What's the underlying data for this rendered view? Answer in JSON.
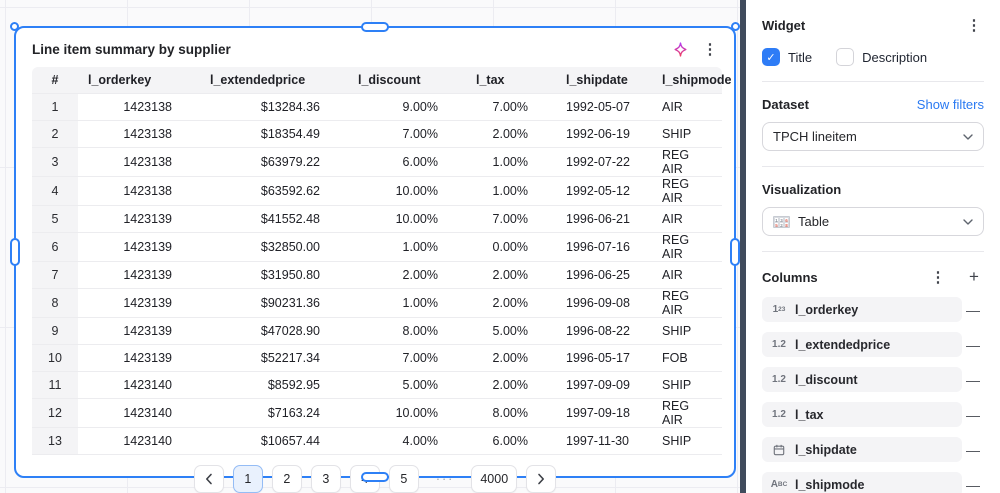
{
  "colors": {
    "accent_blue": "#2e7cf6",
    "selection_blue": "#2e80f6",
    "link_blue": "#2979f2",
    "divider_dark": "#404b5c",
    "row_gray": "#f4f4f6",
    "sparkle_gradient_top": "#b43bf0",
    "sparkle_gradient_bottom": "#ef3e63"
  },
  "card": {
    "title": "Line item summary by supplier",
    "action_icons": [
      "sparkle-icon",
      "kebab-menu-icon"
    ],
    "table": {
      "columns": [
        "#",
        "l_orderkey",
        "l_extendedprice",
        "l_discount",
        "l_tax",
        "l_shipdate",
        "l_shipmode"
      ],
      "rows": [
        [
          "1",
          "1423138",
          "$13284.36",
          "9.00%",
          "7.00%",
          "1992-05-07",
          "AIR"
        ],
        [
          "2",
          "1423138",
          "$18354.49",
          "7.00%",
          "2.00%",
          "1992-06-19",
          "SHIP"
        ],
        [
          "3",
          "1423138",
          "$63979.22",
          "6.00%",
          "1.00%",
          "1992-07-22",
          "REG AIR"
        ],
        [
          "4",
          "1423138",
          "$63592.62",
          "10.00%",
          "1.00%",
          "1992-05-12",
          "REG AIR"
        ],
        [
          "5",
          "1423139",
          "$41552.48",
          "10.00%",
          "7.00%",
          "1996-06-21",
          "AIR"
        ],
        [
          "6",
          "1423139",
          "$32850.00",
          "1.00%",
          "0.00%",
          "1996-07-16",
          "REG AIR"
        ],
        [
          "7",
          "1423139",
          "$31950.80",
          "2.00%",
          "2.00%",
          "1996-06-25",
          "AIR"
        ],
        [
          "8",
          "1423139",
          "$90231.36",
          "1.00%",
          "2.00%",
          "1996-09-08",
          "REG AIR"
        ],
        [
          "9",
          "1423139",
          "$47028.90",
          "8.00%",
          "5.00%",
          "1996-08-22",
          "SHIP"
        ],
        [
          "10",
          "1423139",
          "$52217.34",
          "7.00%",
          "2.00%",
          "1996-05-17",
          "FOB"
        ],
        [
          "11",
          "1423140",
          "$8592.95",
          "5.00%",
          "2.00%",
          "1997-09-09",
          "SHIP"
        ],
        [
          "12",
          "1423140",
          "$7163.24",
          "10.00%",
          "8.00%",
          "1997-09-18",
          "REG AIR"
        ],
        [
          "13",
          "1423140",
          "$10657.44",
          "4.00%",
          "6.00%",
          "1997-11-30",
          "SHIP"
        ]
      ]
    },
    "pagination": {
      "pages": [
        "1",
        "2",
        "3",
        "4",
        "5",
        "···",
        "4000"
      ],
      "active_page": "1",
      "prev_icon": "chevron-left-icon",
      "next_icon": "chevron-right-icon"
    }
  },
  "sidebar": {
    "widget": {
      "title": "Widget",
      "menu_icon": "kebab-menu-icon",
      "title_checkbox_label": "Title",
      "title_checked": true,
      "description_checkbox_label": "Description",
      "description_checked": false
    },
    "dataset": {
      "label": "Dataset",
      "link": "Show filters",
      "selected": "TPCH lineitem"
    },
    "visualization": {
      "label": "Visualization",
      "selected": "Table",
      "selected_icon": "table-viz-icon"
    },
    "columns": {
      "label": "Columns",
      "menu_icon": "kebab-menu-icon",
      "add_icon": "plus-icon",
      "remove_icon": "minus-icon",
      "items": [
        {
          "icon": "integer-icon",
          "label": "l_orderkey"
        },
        {
          "icon": "decimal-icon",
          "label": "l_extendedprice"
        },
        {
          "icon": "decimal-icon",
          "label": "l_discount"
        },
        {
          "icon": "decimal-icon",
          "label": "l_tax"
        },
        {
          "icon": "date-icon",
          "label": "l_shipdate"
        },
        {
          "icon": "text-icon",
          "label": "l_shipmode"
        }
      ]
    }
  }
}
